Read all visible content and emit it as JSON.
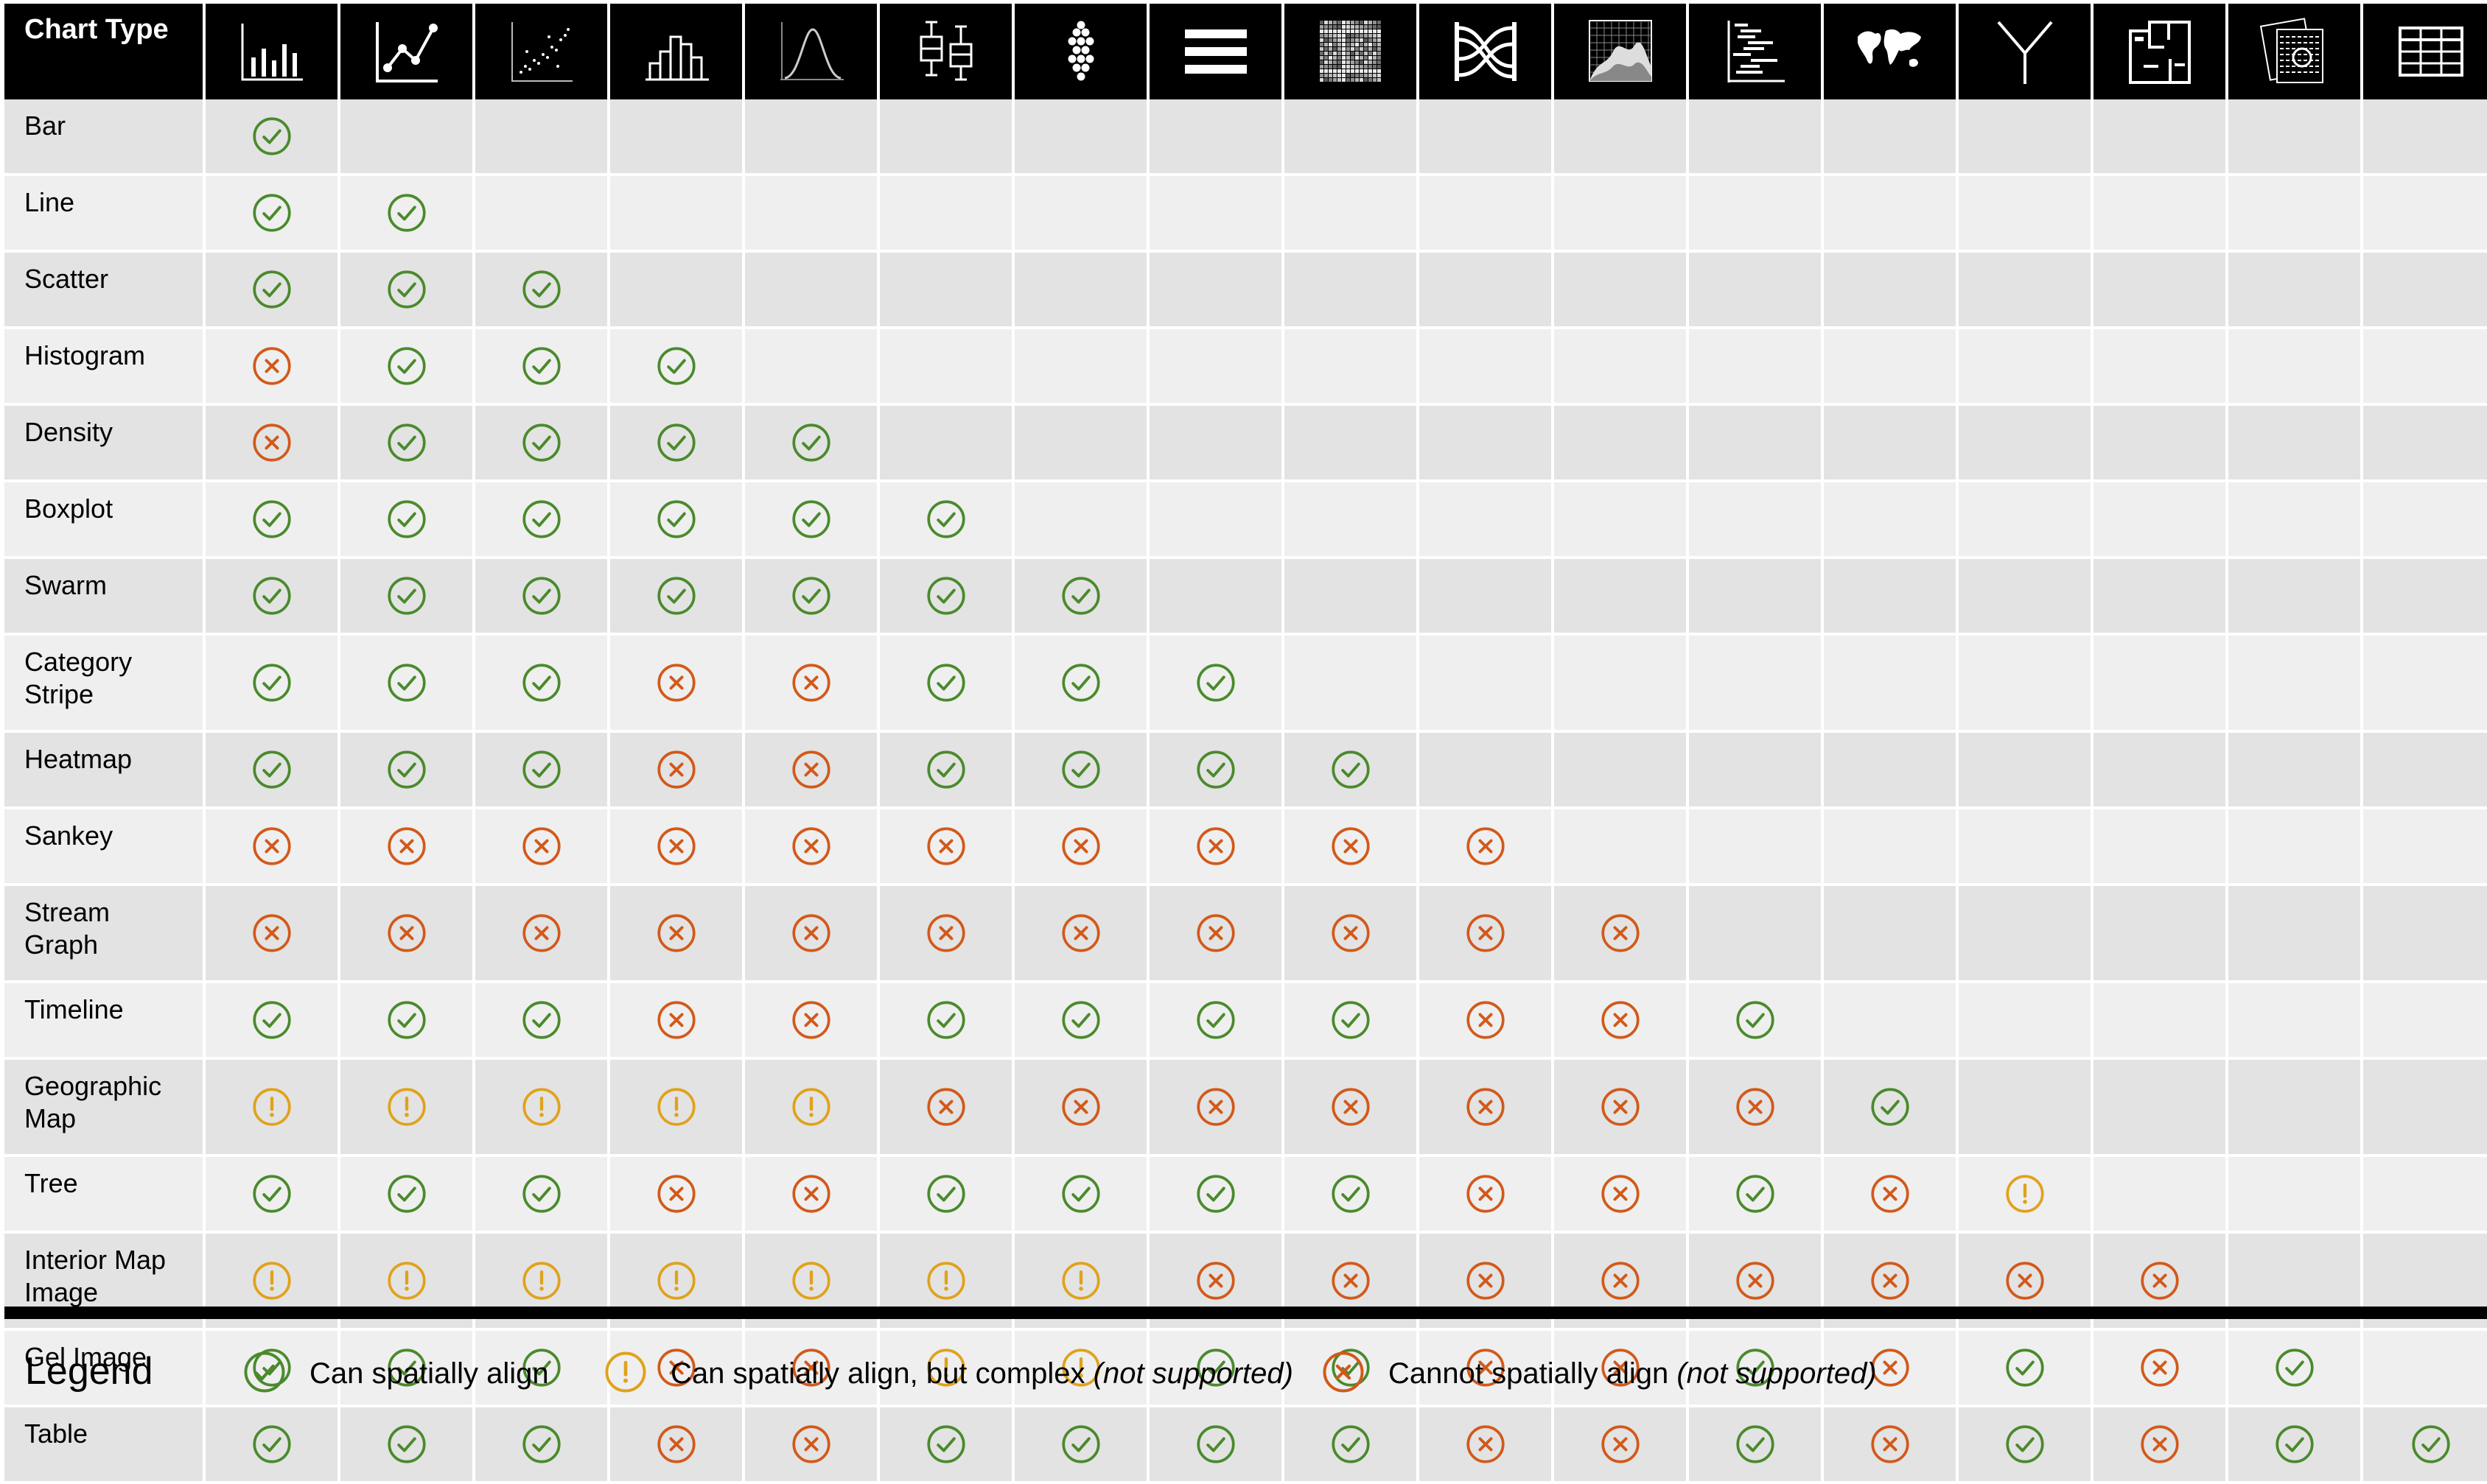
{
  "header": {
    "label": "Chart Type"
  },
  "column_icons": [
    "bar-chart-icon",
    "line-chart-icon",
    "scatter-plot-icon",
    "histogram-icon",
    "density-curve-icon",
    "boxplot-icon",
    "swarm-plot-icon",
    "category-stripe-icon",
    "heatmap-icon",
    "sankey-icon",
    "stream-graph-icon",
    "timeline-icon",
    "geographic-map-icon",
    "tree-icon",
    "interior-map-icon",
    "gel-image-icon",
    "table-icon"
  ],
  "colors": {
    "check": "#4a8a2c",
    "warn": "#e0a21b",
    "cross": "#d2591a",
    "header_bg": "#000000",
    "row_odd": "#e3e3e3",
    "row_even": "#efefef"
  },
  "rows": [
    {
      "label": "Bar",
      "cells": [
        "c"
      ]
    },
    {
      "label": "Line",
      "cells": [
        "c",
        "c"
      ]
    },
    {
      "label": "Scatter",
      "cells": [
        "c",
        "c",
        "c"
      ]
    },
    {
      "label": "Histogram",
      "cells": [
        "x",
        "c",
        "c",
        "c"
      ]
    },
    {
      "label": "Density",
      "cells": [
        "x",
        "c",
        "c",
        "c",
        "c"
      ]
    },
    {
      "label": "Boxplot",
      "cells": [
        "c",
        "c",
        "c",
        "c",
        "c",
        "c"
      ]
    },
    {
      "label": "Swarm",
      "cells": [
        "c",
        "c",
        "c",
        "c",
        "c",
        "c",
        "c"
      ]
    },
    {
      "label": "Category\nStripe",
      "cells": [
        "c",
        "c",
        "c",
        "x",
        "x",
        "c",
        "c",
        "c"
      ]
    },
    {
      "label": "Heatmap",
      "cells": [
        "c",
        "c",
        "c",
        "x",
        "x",
        "c",
        "c",
        "c",
        "c"
      ]
    },
    {
      "label": "Sankey",
      "cells": [
        "x",
        "x",
        "x",
        "x",
        "x",
        "x",
        "x",
        "x",
        "x",
        "x"
      ]
    },
    {
      "label": "Stream\nGraph",
      "cells": [
        "x",
        "x",
        "x",
        "x",
        "x",
        "x",
        "x",
        "x",
        "x",
        "x",
        "x"
      ]
    },
    {
      "label": "Timeline",
      "cells": [
        "c",
        "c",
        "c",
        "x",
        "x",
        "c",
        "c",
        "c",
        "c",
        "x",
        "x",
        "c"
      ]
    },
    {
      "label": "Geographic\nMap",
      "cells": [
        "w",
        "w",
        "w",
        "w",
        "w",
        "x",
        "x",
        "x",
        "x",
        "x",
        "x",
        "x",
        "c"
      ]
    },
    {
      "label": "Tree",
      "cells": [
        "c",
        "c",
        "c",
        "x",
        "x",
        "c",
        "c",
        "c",
        "c",
        "x",
        "x",
        "c",
        "x",
        "w"
      ]
    },
    {
      "label": "Interior Map\nImage",
      "cells": [
        "w",
        "w",
        "w",
        "w",
        "w",
        "w",
        "w",
        "x",
        "x",
        "x",
        "x",
        "x",
        "x",
        "x",
        "x"
      ]
    },
    {
      "label": "Gel Image",
      "cells": [
        "c",
        "c",
        "c",
        "x",
        "x",
        "w",
        "w",
        "c",
        "c",
        "x",
        "x",
        "c",
        "x",
        "c",
        "x",
        "c"
      ]
    },
    {
      "label": "Table",
      "cells": [
        "c",
        "c",
        "c",
        "x",
        "x",
        "c",
        "c",
        "c",
        "c",
        "x",
        "x",
        "c",
        "x",
        "c",
        "x",
        "c",
        "c"
      ]
    }
  ],
  "legend": {
    "title": "Legend",
    "items": [
      {
        "icon": "c",
        "text": "Can spatially align",
        "note": ""
      },
      {
        "icon": "w",
        "text": "Can spatially align, but complex ",
        "note": "(not supported)"
      },
      {
        "icon": "x",
        "text": "Cannot spatially align ",
        "note": "(not supported)"
      }
    ]
  }
}
